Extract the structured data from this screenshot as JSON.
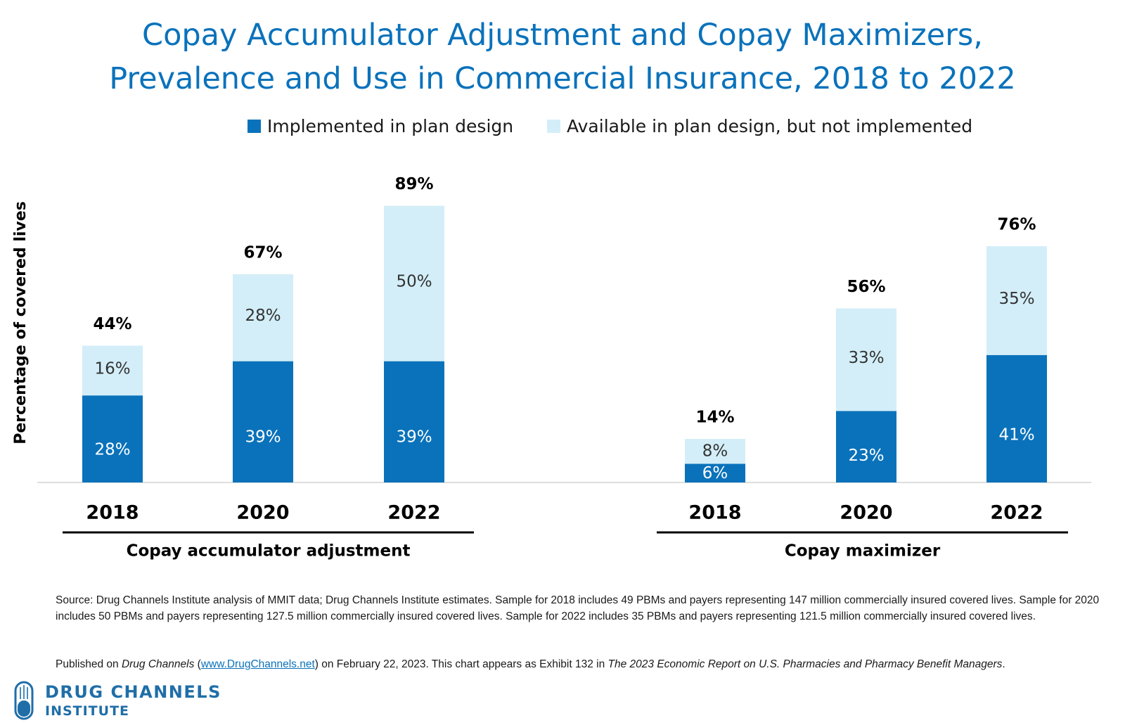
{
  "title_line1": "Copay Accumulator Adjustment and Copay Maximizers,",
  "title_line2": "Prevalence and Use in Commercial Insurance, 2018 to 2022",
  "colors": {
    "implemented": "#0a72bb",
    "available": "#d3eef8",
    "title": "#0a72bb"
  },
  "chart_data": {
    "type": "bar",
    "stacked": true,
    "ylabel": "Percentage of covered lives",
    "ylim": [
      0,
      100
    ],
    "grid": false,
    "legend_position": "top",
    "legend": [
      "Implemented in plan design",
      "Available in plan design, but not implemented"
    ],
    "groups": [
      {
        "name": "Copay accumulator adjustment",
        "categories": [
          "2018",
          "2020",
          "2022"
        ],
        "series": [
          {
            "name": "Implemented in plan design",
            "values": [
              28,
              39,
              39
            ],
            "labels": [
              "28%",
              "39%",
              "39%"
            ]
          },
          {
            "name": "Available in plan design, but not implemented",
            "values": [
              16,
              28,
              50
            ],
            "labels": [
              "16%",
              "28%",
              "50%"
            ]
          }
        ],
        "totals": [
          "44%",
          "67%",
          "89%"
        ],
        "total_values": [
          44,
          67,
          89
        ]
      },
      {
        "name": "Copay maximizer",
        "categories": [
          "2018",
          "2020",
          "2022"
        ],
        "series": [
          {
            "name": "Implemented in plan design",
            "values": [
              6,
              23,
              41
            ],
            "labels": [
              "6%",
              "23%",
              "41%"
            ]
          },
          {
            "name": "Available in plan design, but not implemented",
            "values": [
              8,
              33,
              35
            ],
            "labels": [
              "8%",
              "33%",
              "35%"
            ]
          }
        ],
        "totals": [
          "14%",
          "56%",
          "76%"
        ],
        "total_values": [
          14,
          56,
          76
        ]
      }
    ]
  },
  "notes": {
    "source": "Source: Drug Channels Institute analysis of MMIT data; Drug Channels Institute estimates. Sample for 2018 includes 49 PBMs and payers representing 147 million commercially insured covered lives. Sample for 2020 includes 50 PBMs and payers representing 127.5 million commercially insured covered lives. Sample for 2022 includes 35 PBMs and payers representing 121.5 million commercially insured covered lives.",
    "published_prefix": "Published on ",
    "published_site": "Drug Channels",
    "published_open": " (",
    "published_link": "www.DrugChannels.net",
    "published_mid": ") on February 22, 2023. This chart appears as Exhibit 132 in ",
    "published_report": "The 2023 Economic Report on U.S. Pharmacies and Pharmacy Benefit Managers",
    "published_end": "."
  },
  "logo": {
    "line1": "DRUG CHANNELS",
    "line2": "INSTITUTE"
  }
}
